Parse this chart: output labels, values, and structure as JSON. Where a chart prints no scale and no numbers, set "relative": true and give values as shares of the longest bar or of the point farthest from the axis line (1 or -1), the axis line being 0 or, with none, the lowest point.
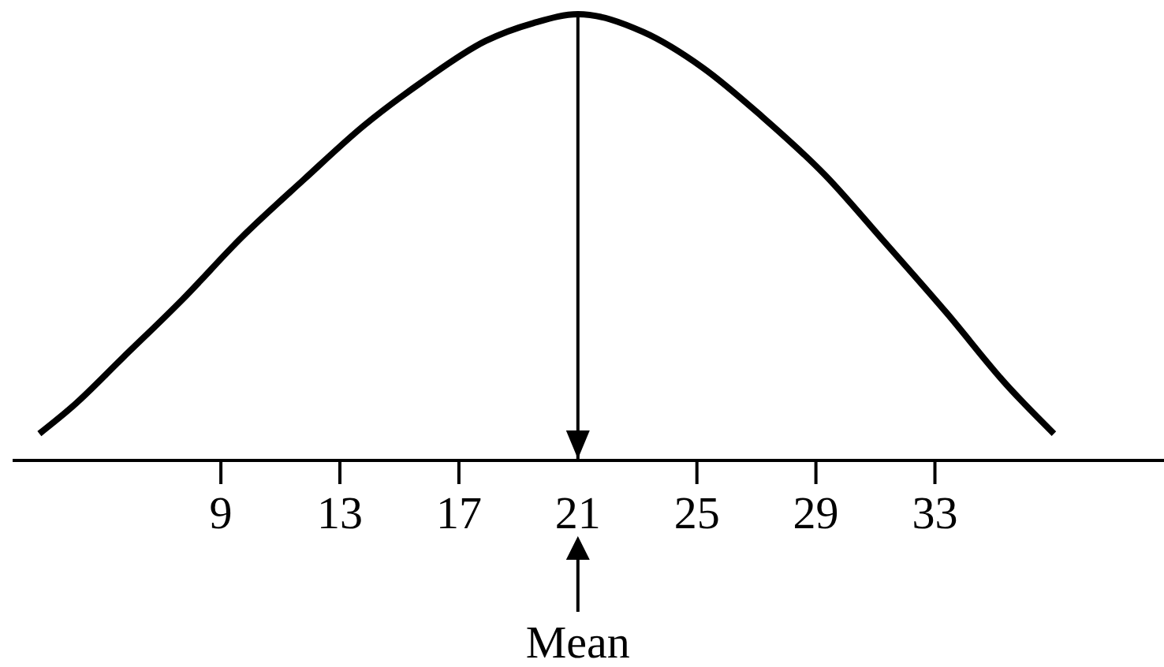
{
  "chart_data": {
    "type": "line",
    "relative": true,
    "x": [
      2.9,
      4,
      5.7,
      7.7,
      9.7,
      11.8,
      13.8,
      15.8,
      17.9,
      19.5,
      21,
      23.2,
      25.2,
      27.2,
      29.3,
      31.3,
      33.4,
      35.4,
      37
    ],
    "series": [
      {
        "color": "#000000",
        "values": [
          0.06,
          0.12,
          0.23,
          0.36,
          0.5,
          0.63,
          0.75,
          0.85,
          0.94,
          0.98,
          1,
          0.96,
          0.88,
          0.77,
          0.64,
          0.49,
          0.33,
          0.17,
          0.06
        ]
      }
    ],
    "xlim": [
      2,
      40.7
    ],
    "xticks": [
      9,
      13,
      17,
      21,
      25,
      29,
      33
    ],
    "ref_lines": [
      {
        "axis": "x",
        "value": 21,
        "label": "Mean"
      }
    ],
    "line_style": "solid"
  }
}
